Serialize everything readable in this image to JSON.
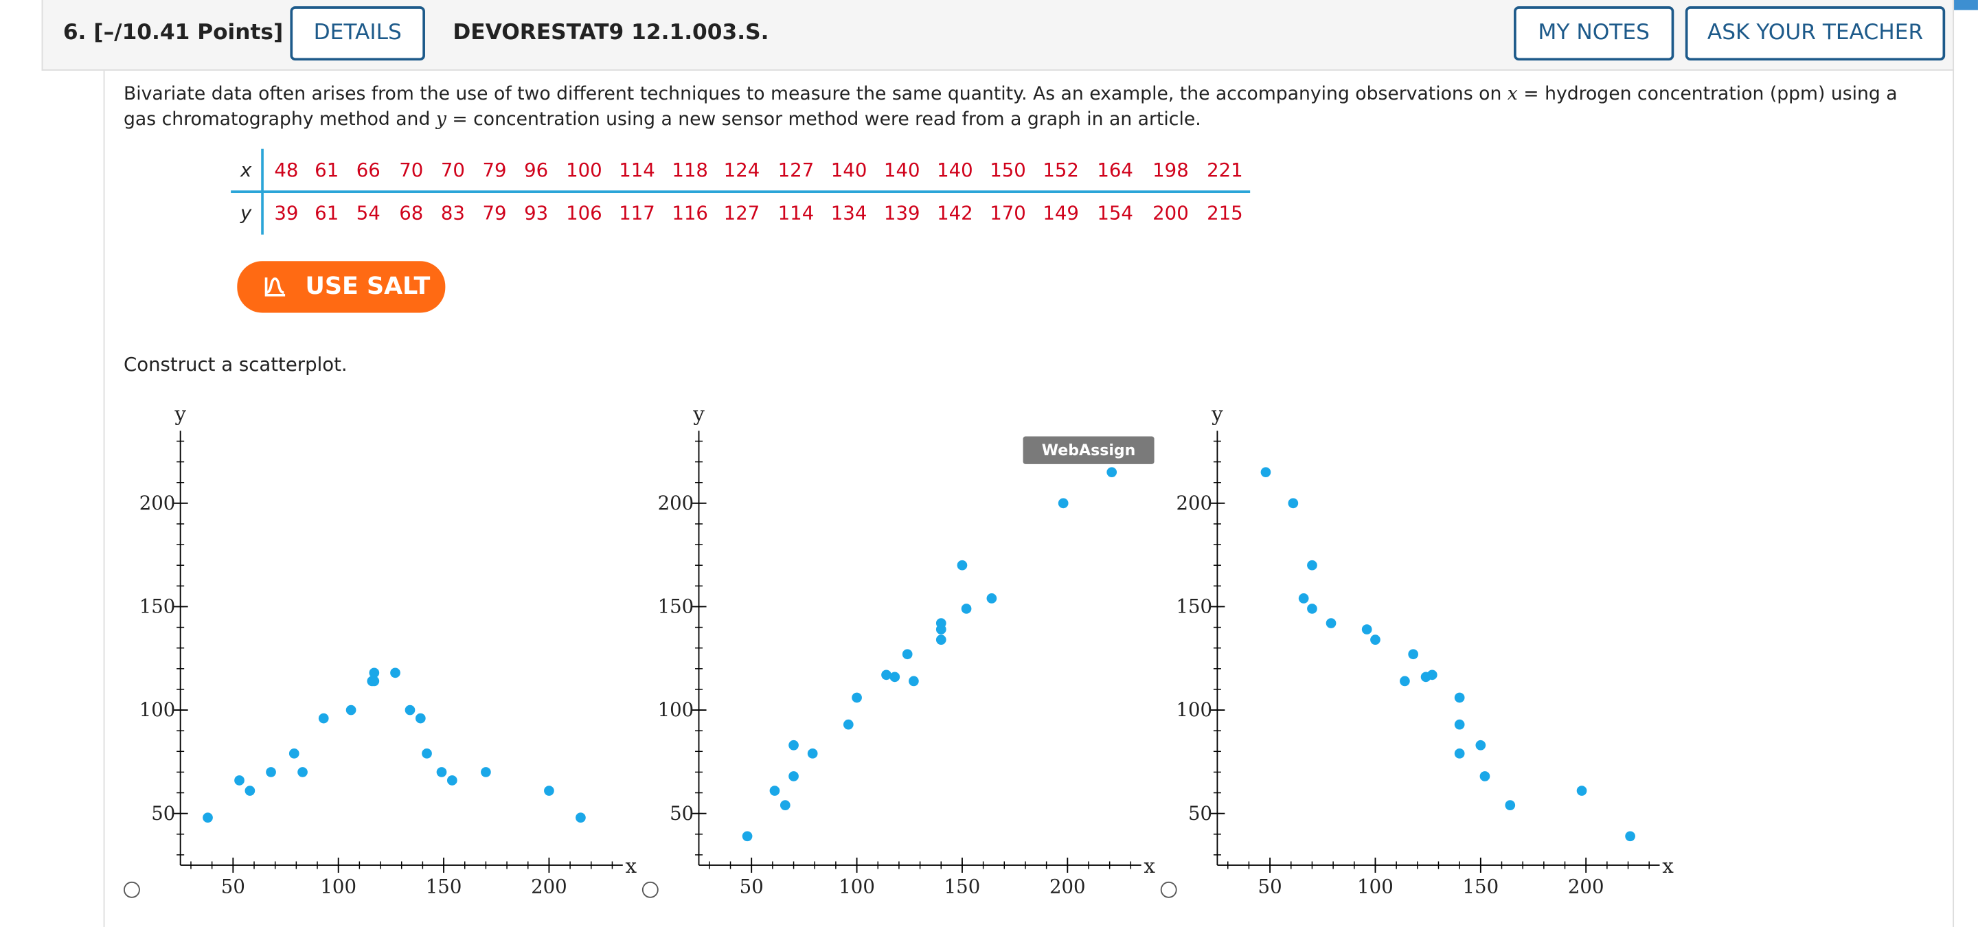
{
  "question": {
    "number_label": "6. [–/10.41 Points]",
    "details_label": "DETAILS",
    "code": "DEVORESTAT9 12.1.003.S.",
    "my_notes_label": "MY NOTES",
    "ask_teacher_label": "ASK YOUR TEACHER"
  },
  "intro": {
    "part1": "Bivariate data often arises from the use of two different techniques to measure the same quantity. As an example, the accompanying observations on ",
    "xvar": "x",
    "part2": " = hydrogen concentration (ppm) using a gas chromatography method and ",
    "yvar": "y",
    "part3": " = concentration using a new sensor method were read from a graph in an article."
  },
  "data_table": {
    "x_label": "x",
    "y_label": "y",
    "x": [
      "48",
      "61",
      "66",
      "70",
      "70",
      "79",
      "96",
      "100",
      "114",
      "118",
      "124",
      "127",
      "140",
      "140",
      "140",
      "150",
      "152",
      "164",
      "198",
      "221"
    ],
    "y": [
      "39",
      "61",
      "54",
      "68",
      "83",
      "79",
      "93",
      "106",
      "117",
      "116",
      "127",
      "114",
      "134",
      "139",
      "142",
      "170",
      "149",
      "154",
      "200",
      "215"
    ]
  },
  "salt_label": "USE SALT",
  "construct_label": "Construct a scatterplot.",
  "tooltip_label": "WebAssign Plot",
  "colors": {
    "point": "#1aa7e8",
    "salt": "#ff6a13",
    "accent": "#1d5a8a"
  },
  "chart_data": [
    {
      "type": "scatter",
      "xlabel": "x",
      "ylabel": "y",
      "xlim": [
        25,
        235
      ],
      "ylim": [
        25,
        235
      ],
      "xticks": [
        50,
        100,
        150,
        200
      ],
      "yticks": [
        50,
        100,
        150,
        200
      ],
      "points": [
        [
          38,
          48
        ],
        [
          53,
          66
        ],
        [
          58,
          61
        ],
        [
          68,
          70
        ],
        [
          79,
          79
        ],
        [
          83,
          70
        ],
        [
          93,
          96
        ],
        [
          106,
          100
        ],
        [
          116,
          114
        ],
        [
          117,
          118
        ],
        [
          117,
          114
        ],
        [
          127,
          118
        ],
        [
          134,
          100
        ],
        [
          139,
          96
        ],
        [
          142,
          79
        ],
        [
          149,
          70
        ],
        [
          154,
          66
        ],
        [
          170,
          70
        ],
        [
          200,
          61
        ],
        [
          215,
          48
        ]
      ]
    },
    {
      "type": "scatter",
      "xlabel": "x",
      "ylabel": "y",
      "xlim": [
        25,
        235
      ],
      "ylim": [
        25,
        235
      ],
      "xticks": [
        50,
        100,
        150,
        200
      ],
      "yticks": [
        50,
        100,
        150,
        200
      ],
      "points": [
        [
          48,
          39
        ],
        [
          61,
          61
        ],
        [
          66,
          54
        ],
        [
          70,
          68
        ],
        [
          70,
          83
        ],
        [
          79,
          79
        ],
        [
          96,
          93
        ],
        [
          100,
          106
        ],
        [
          114,
          117
        ],
        [
          118,
          116
        ],
        [
          124,
          127
        ],
        [
          127,
          114
        ],
        [
          140,
          134
        ],
        [
          140,
          139
        ],
        [
          140,
          142
        ],
        [
          150,
          170
        ],
        [
          152,
          149
        ],
        [
          164,
          154
        ],
        [
          198,
          200
        ],
        [
          221,
          215
        ]
      ]
    },
    {
      "type": "scatter",
      "xlabel": "x",
      "ylabel": "y",
      "xlim": [
        25,
        235
      ],
      "ylim": [
        25,
        235
      ],
      "xticks": [
        50,
        100,
        150,
        200
      ],
      "yticks": [
        50,
        100,
        150,
        200
      ],
      "points": [
        [
          48,
          215
        ],
        [
          61,
          200
        ],
        [
          66,
          154
        ],
        [
          70,
          149
        ],
        [
          70,
          170
        ],
        [
          79,
          142
        ],
        [
          96,
          139
        ],
        [
          100,
          134
        ],
        [
          114,
          114
        ],
        [
          118,
          127
        ],
        [
          124,
          116
        ],
        [
          127,
          117
        ],
        [
          140,
          106
        ],
        [
          140,
          93
        ],
        [
          140,
          79
        ],
        [
          150,
          83
        ],
        [
          152,
          68
        ],
        [
          164,
          54
        ],
        [
          198,
          61
        ],
        [
          221,
          39
        ]
      ]
    }
  ]
}
